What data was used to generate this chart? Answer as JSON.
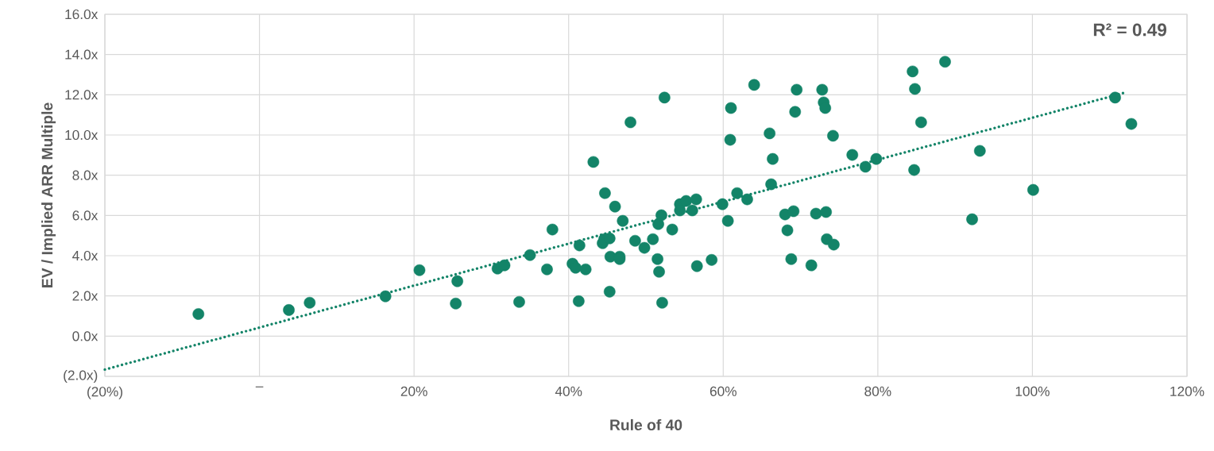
{
  "chart_data": {
    "type": "scatter",
    "xlabel": "Rule of 40",
    "ylabel": "EV / Implied ARR Multiple",
    "annotations": [
      "R² = 0.49"
    ],
    "xlim": [
      -20,
      120
    ],
    "ylim": [
      -2,
      16
    ],
    "xticks": [
      {
        "value": -20,
        "label": "(20%)"
      },
      {
        "value": 0,
        "label": "–"
      },
      {
        "value": 20,
        "label": "20%"
      },
      {
        "value": 40,
        "label": "40%"
      },
      {
        "value": 60,
        "label": "60%"
      },
      {
        "value": 80,
        "label": "80%"
      },
      {
        "value": 100,
        "label": "100%"
      },
      {
        "value": 120,
        "label": "120%"
      }
    ],
    "yticks": [
      {
        "value": -2,
        "label": "(2.0x)"
      },
      {
        "value": 0,
        "label": "0.0x"
      },
      {
        "value": 2,
        "label": "2.0x"
      },
      {
        "value": 4,
        "label": "4.0x"
      },
      {
        "value": 6,
        "label": "6.0x"
      },
      {
        "value": 8,
        "label": "8.0x"
      },
      {
        "value": 10,
        "label": "10.0x"
      },
      {
        "value": 12,
        "label": "12.0x"
      },
      {
        "value": 14,
        "label": "14.0x"
      },
      {
        "value": 16,
        "label": "16.0x"
      }
    ],
    "grid": true,
    "series": [
      {
        "type": "scatter",
        "marker": "circle",
        "color": "#138468",
        "x": [
          -7.9,
          3.8,
          6.5,
          16.3,
          20.7,
          25.6,
          25.4,
          30.8,
          31.7,
          33.6,
          35.0,
          37.2,
          37.9,
          40.5,
          40.9,
          41.3,
          41.4,
          42.2,
          43.2,
          44.4,
          44.6,
          44.7,
          45.3,
          45.3,
          45.4,
          46.0,
          46.6,
          46.6,
          47.0,
          48.0,
          48.6,
          49.8,
          50.9,
          51.5,
          51.7,
          51.6,
          52.0,
          52.1,
          52.4,
          53.4,
          54.4,
          54.4,
          55.2,
          56.0,
          56.5,
          56.6,
          58.5,
          59.9,
          60.6,
          60.9,
          61.0,
          61.8,
          63.1,
          64.0,
          66.0,
          66.2,
          66.4,
          68.0,
          68.3,
          68.8,
          69.1,
          69.3,
          69.5,
          71.4,
          72.0,
          72.8,
          73.0,
          73.3,
          73.2,
          73.4,
          74.3,
          74.2,
          76.7,
          78.4,
          79.8,
          84.5,
          84.8,
          84.7,
          85.6,
          88.7,
          92.2,
          93.2,
          100.1,
          110.7,
          112.8
        ],
        "values": [
          1.1,
          1.3,
          1.66,
          1.98,
          3.28,
          2.73,
          1.62,
          3.36,
          3.52,
          1.7,
          4.03,
          3.32,
          5.3,
          3.6,
          3.4,
          1.74,
          4.51,
          3.32,
          8.66,
          4.62,
          4.82,
          7.11,
          4.86,
          2.21,
          3.95,
          6.44,
          3.95,
          3.83,
          5.73,
          10.63,
          4.74,
          4.39,
          4.82,
          3.83,
          3.2,
          5.57,
          6.01,
          1.66,
          11.86,
          5.3,
          6.56,
          6.25,
          6.72,
          6.25,
          6.8,
          3.48,
          3.79,
          6.56,
          5.73,
          9.76,
          11.34,
          7.11,
          6.8,
          12.49,
          10.08,
          7.55,
          8.81,
          6.05,
          5.26,
          3.83,
          6.21,
          11.15,
          12.25,
          3.52,
          6.09,
          12.25,
          11.62,
          6.17,
          11.34,
          4.82,
          4.55,
          9.96,
          9.01,
          8.42,
          8.81,
          13.16,
          12.29,
          8.26,
          10.63,
          13.64,
          5.81,
          9.21,
          7.27,
          11.86,
          10.55
        ]
      },
      {
        "type": "line",
        "marker": "none",
        "color": "#138468",
        "line_style": "dotted",
        "x": [
          -20,
          112.2
        ],
        "values": [
          -1.66,
          12.13
        ]
      }
    ]
  }
}
